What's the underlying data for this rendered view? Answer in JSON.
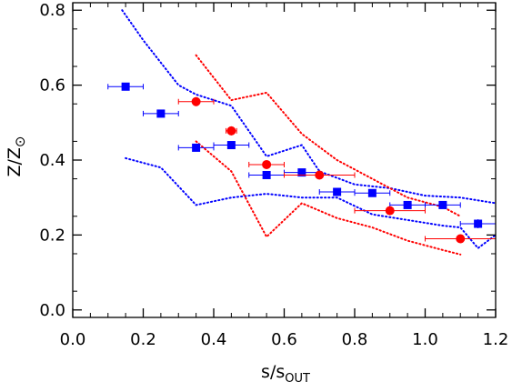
{
  "chart_data": {
    "type": "scatter",
    "title": "",
    "xlabel": {
      "main": "s/s",
      "sub": "OUT"
    },
    "ylabel": {
      "main": "Z/Z",
      "symbol": "⊙"
    },
    "xlim": [
      0.0,
      1.2
    ],
    "ylim": [
      -0.02,
      0.82
    ],
    "xticks": [
      "0.0",
      "0.2",
      "0.4",
      "0.6",
      "0.8",
      "1.0",
      "1.2"
    ],
    "yticks": [
      "0.0",
      "0.2",
      "0.4",
      "0.6",
      "0.8"
    ],
    "grid": false,
    "series": [
      {
        "marker": "square",
        "color": "#0000ff",
        "points": [
          {
            "x": 0.15,
            "y": 0.596,
            "xerr": 0.05,
            "yerr": 0.005
          },
          {
            "x": 0.25,
            "y": 0.524,
            "xerr": 0.05,
            "yerr": 0.005
          },
          {
            "x": 0.35,
            "y": 0.433,
            "xerr": 0.05,
            "yerr": 0.005
          },
          {
            "x": 0.45,
            "y": 0.44,
            "xerr": 0.05,
            "yerr": 0.006
          },
          {
            "x": 0.55,
            "y": 0.36,
            "xerr": 0.05,
            "yerr": 0.008
          },
          {
            "x": 0.65,
            "y": 0.367,
            "xerr": 0.05,
            "yerr": 0.005
          },
          {
            "x": 0.75,
            "y": 0.315,
            "xerr": 0.05,
            "yerr": 0.005
          },
          {
            "x": 0.85,
            "y": 0.312,
            "xerr": 0.05,
            "yerr": 0.005
          },
          {
            "x": 0.95,
            "y": 0.28,
            "xerr": 0.05,
            "yerr": 0.006
          },
          {
            "x": 1.05,
            "y": 0.28,
            "xerr": 0.05,
            "yerr": 0.006
          },
          {
            "x": 1.15,
            "y": 0.23,
            "xerr": 0.05,
            "yerr": 0.012
          }
        ]
      },
      {
        "marker": "circle",
        "color": "#ff0000",
        "points": [
          {
            "x": 0.35,
            "y": 0.556,
            "xerr": 0.05,
            "yerr": 0.012
          },
          {
            "x": 0.45,
            "y": 0.478,
            "xerr": 0.015,
            "yerr": 0.012
          },
          {
            "x": 0.55,
            "y": 0.388,
            "xerr": 0.05,
            "yerr": 0.01
          },
          {
            "x": 0.7,
            "y": 0.36,
            "xerr": 0.1,
            "yerr": 0.008
          },
          {
            "x": 0.9,
            "y": 0.265,
            "xerr": 0.1,
            "yerr": 0.007
          },
          {
            "x": 1.1,
            "y": 0.19,
            "xerr": 0.1,
            "yerr": 0.008
          }
        ]
      }
    ],
    "envelopes": [
      {
        "color": "#0000ff",
        "style": "dotted",
        "points": [
          [
            0.14,
            0.8
          ],
          [
            0.2,
            0.72
          ],
          [
            0.3,
            0.6
          ],
          [
            0.35,
            0.575
          ],
          [
            0.45,
            0.545
          ],
          [
            0.55,
            0.41
          ],
          [
            0.65,
            0.44
          ],
          [
            0.7,
            0.37
          ],
          [
            0.8,
            0.335
          ],
          [
            0.9,
            0.325
          ],
          [
            1.0,
            0.305
          ],
          [
            1.1,
            0.3
          ],
          [
            1.2,
            0.285
          ]
        ]
      },
      {
        "color": "#0000ff",
        "style": "dotted",
        "points": [
          [
            0.15,
            0.405
          ],
          [
            0.25,
            0.38
          ],
          [
            0.35,
            0.28
          ],
          [
            0.45,
            0.3
          ],
          [
            0.55,
            0.31
          ],
          [
            0.65,
            0.3
          ],
          [
            0.75,
            0.3
          ],
          [
            0.85,
            0.255
          ],
          [
            0.95,
            0.24
          ],
          [
            1.05,
            0.225
          ],
          [
            1.1,
            0.22
          ],
          [
            1.15,
            0.165
          ],
          [
            1.2,
            0.2
          ]
        ]
      },
      {
        "color": "#ff0000",
        "style": "dotted",
        "points": [
          [
            0.35,
            0.68
          ],
          [
            0.45,
            0.56
          ],
          [
            0.55,
            0.58
          ],
          [
            0.65,
            0.47
          ],
          [
            0.75,
            0.4
          ],
          [
            0.85,
            0.35
          ],
          [
            0.95,
            0.3
          ],
          [
            1.05,
            0.275
          ],
          [
            1.1,
            0.25
          ]
        ]
      },
      {
        "color": "#ff0000",
        "style": "dotted",
        "points": [
          [
            0.35,
            0.45
          ],
          [
            0.45,
            0.37
          ],
          [
            0.55,
            0.195
          ],
          [
            0.65,
            0.285
          ],
          [
            0.75,
            0.245
          ],
          [
            0.85,
            0.22
          ],
          [
            0.95,
            0.185
          ],
          [
            1.05,
            0.16
          ],
          [
            1.1,
            0.148
          ]
        ]
      }
    ]
  }
}
